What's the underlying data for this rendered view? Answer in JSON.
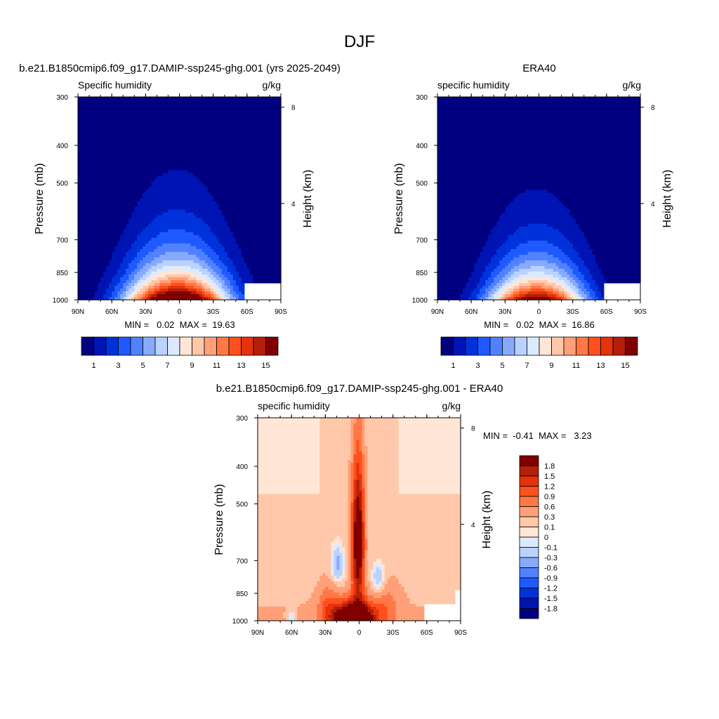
{
  "figure_title": "DJF",
  "chart_data": [
    {
      "type": "heatmap",
      "title": "b.e21.B1850cmip6.f09_g17.DAMIP-ssp245-ghg.001 (yrs 2025-2049)",
      "left_label": "Specific humidity",
      "units": "g/kg",
      "ylabel": "Pressure (mb)",
      "ylabel_right": "Height (km)",
      "x_ticks": [
        "90N",
        "60N",
        "30N",
        "0",
        "30S",
        "60S",
        "90S"
      ],
      "x_range": [
        90,
        -90
      ],
      "y_ticks": [
        300,
        400,
        500,
        700,
        850,
        1000
      ],
      "y_range": [
        1000,
        300
      ],
      "y_log_scale": true,
      "right_ticks": [
        8,
        4
      ],
      "stats": "MIN =   0.02  MAX =  19.63",
      "colorbar_labels": [
        "1",
        "3",
        "5",
        "7",
        "9",
        "11",
        "13",
        "15"
      ],
      "colors": [
        "#000080",
        "#0014b4",
        "#0032dc",
        "#1e5aff",
        "#5082ff",
        "#87aaff",
        "#b9d2ff",
        "#dceaff",
        "#ffe6d7",
        "#ffc8aa",
        "#ffa078",
        "#ff7846",
        "#ff501e",
        "#e6320a",
        "#b41e0a",
        "#800000"
      ],
      "field": {
        "peak_lat": 0,
        "peak_value": 19.63,
        "min_value": 0.02,
        "surface_decay_lat": 45,
        "scale_height_mb": 180
      }
    },
    {
      "type": "heatmap",
      "title": "ERA40",
      "left_label": "specific humidity",
      "units": "g/kg",
      "ylabel": "Pressure (mb)",
      "ylabel_right": "Height (km)",
      "x_ticks": [
        "90N",
        "60N",
        "30N",
        "0",
        "30S",
        "60S",
        "90S"
      ],
      "x_range": [
        90,
        -90
      ],
      "y_ticks": [
        300,
        400,
        500,
        700,
        850,
        1000
      ],
      "y_range": [
        1000,
        300
      ],
      "y_log_scale": true,
      "right_ticks": [
        8,
        4
      ],
      "stats": "MIN =   0.02  MAX =  16.86",
      "colorbar_labels": [
        "1",
        "3",
        "5",
        "7",
        "9",
        "11",
        "13",
        "15"
      ],
      "colors": [
        "#000080",
        "#0014b4",
        "#0032dc",
        "#1e5aff",
        "#5082ff",
        "#87aaff",
        "#b9d2ff",
        "#dceaff",
        "#ffe6d7",
        "#ffc8aa",
        "#ffa078",
        "#ff7846",
        "#ff501e",
        "#e6320a",
        "#b41e0a",
        "#800000"
      ],
      "field": {
        "peak_lat": 0,
        "peak_value": 16.86,
        "min_value": 0.02,
        "surface_decay_lat": 42,
        "scale_height_mb": 170
      }
    },
    {
      "type": "heatmap",
      "title": "b.e21.B1850cmip6.f09_g17.DAMIP-ssp245-ghg.001 - ERA40",
      "left_label": "specific humidity",
      "units": "g/kg",
      "ylabel": "Pressure (mb)",
      "ylabel_right": "Height (km)",
      "x_ticks": [
        "90N",
        "60N",
        "30N",
        "0",
        "30S",
        "60S",
        "90S"
      ],
      "x_range": [
        90,
        -90
      ],
      "y_ticks": [
        300,
        400,
        500,
        700,
        850,
        1000
      ],
      "y_range": [
        1000,
        300
      ],
      "y_log_scale": true,
      "right_ticks": [
        8,
        4
      ],
      "stats": "MIN =  -0.41  MAX =   3.23",
      "colorbar_labels": [
        "1.8",
        "1.5",
        "1.2",
        "0.9",
        "0.6",
        "0.3",
        "0.1",
        "0",
        "-0.1",
        "-0.3",
        "-0.6",
        "-0.9",
        "-1.2",
        "-1.5",
        "-1.8"
      ],
      "colors": [
        "#800000",
        "#b41e0a",
        "#e6320a",
        "#ff501e",
        "#ff7846",
        "#ffa078",
        "#ffc8aa",
        "#ffe6d7",
        "#dceaff",
        "#b9d2ff",
        "#87aaff",
        "#5082ff",
        "#1e5aff",
        "#0032dc",
        "#0014b4",
        "#000080"
      ],
      "field": {
        "min_value": -0.41,
        "max_value": 3.23
      }
    }
  ]
}
